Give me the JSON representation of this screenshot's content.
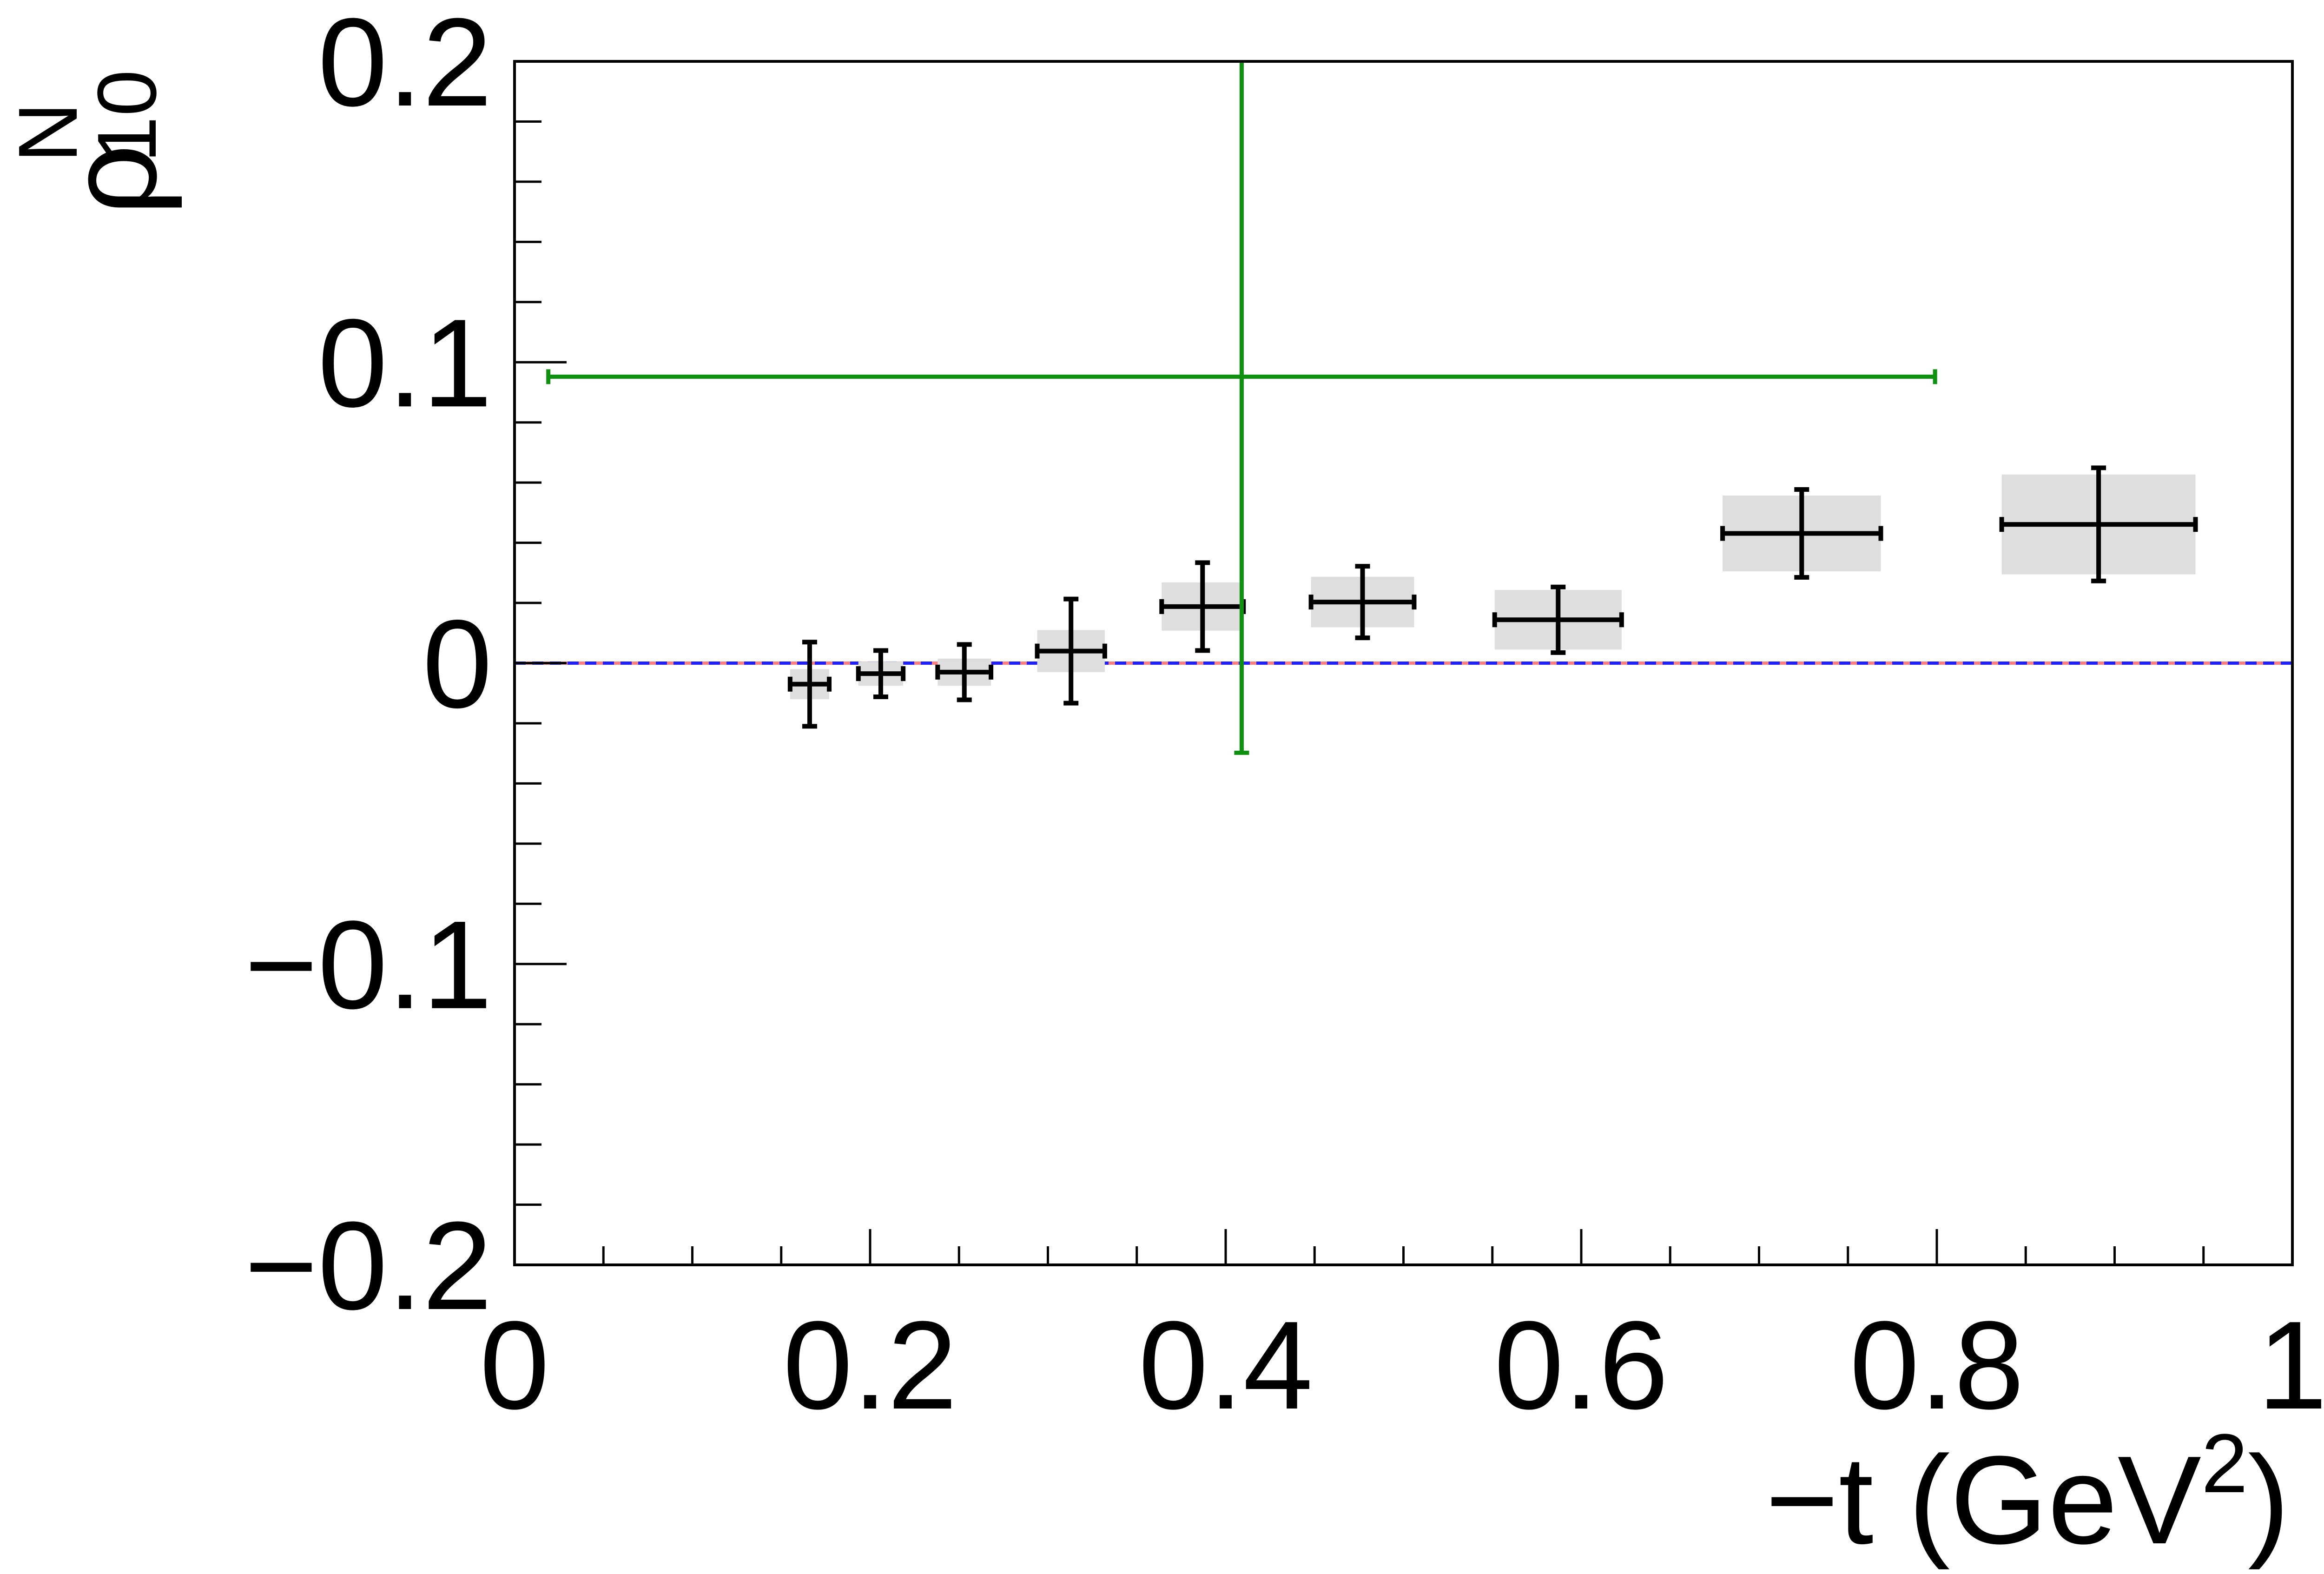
{
  "chart_data": {
    "type": "errorbar",
    "xlabel": {
      "text": "−t (GeV",
      "sup": "2",
      "end": ")"
    },
    "ylabel": {
      "symbol": "ρ",
      "sub": "10",
      "sup": "N"
    },
    "xlim": [
      0,
      1
    ],
    "ylim": [
      -0.2,
      0.2
    ],
    "xticks": [
      0,
      0.2,
      0.4,
      0.6,
      0.8,
      1
    ],
    "yticks": [
      {
        "value": -0.2,
        "label": "−0.2"
      },
      {
        "value": -0.1,
        "label": "−0.1"
      },
      0,
      0.1,
      0.2
    ],
    "x_minor_per_major": 4,
    "y_minor_per_major": 5,
    "reference_lines": [
      {
        "y": 0,
        "color": "#ff7f7f",
        "dashed": false
      },
      {
        "y": 0,
        "color": "#2020ff",
        "dashed": true
      }
    ],
    "series": [
      {
        "color": "#000000",
        "syst_color": "#dedede",
        "x": [
          0.166,
          0.206,
          0.253,
          0.313,
          0.387,
          0.477,
          0.587,
          0.724,
          0.891
        ],
        "values": [
          -0.007,
          -0.0035,
          -0.003,
          0.004,
          0.0188,
          0.0203,
          0.0144,
          0.0431,
          0.0461
        ],
        "yerr": [
          0.014,
          0.0077,
          0.0092,
          0.0173,
          0.0146,
          0.0119,
          0.0109,
          0.0146,
          0.0188
        ],
        "xerr": [
          0.011,
          0.0126,
          0.015,
          0.019,
          0.023,
          0.029,
          0.0357,
          0.0445,
          0.0545
        ],
        "syst": [
          0.005,
          0.004,
          0.0045,
          0.007,
          0.008,
          0.0084,
          0.0099,
          0.0126,
          0.0166
        ]
      },
      {
        "color": "#109010",
        "x": [
          0.409
        ],
        "values": [
          0.0952
        ],
        "yerr": [
          0.125
        ],
        "xerr": [
          0.39
        ]
      }
    ]
  }
}
